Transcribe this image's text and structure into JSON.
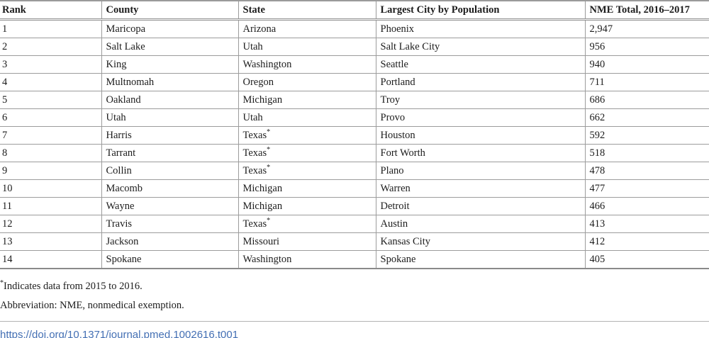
{
  "table": {
    "columns": [
      "Rank",
      "County",
      "State",
      "Largest City by Population",
      "NME Total, 2016–2017"
    ],
    "rows": [
      {
        "rank": "1",
        "county": "Maricopa",
        "state": "Arizona",
        "state_note": "",
        "city": "Phoenix",
        "nme": "2,947"
      },
      {
        "rank": "2",
        "county": "Salt Lake",
        "state": "Utah",
        "state_note": "",
        "city": "Salt Lake City",
        "nme": "956"
      },
      {
        "rank": "3",
        "county": "King",
        "state": "Washington",
        "state_note": "",
        "city": "Seattle",
        "nme": "940"
      },
      {
        "rank": "4",
        "county": "Multnomah",
        "state": "Oregon",
        "state_note": "",
        "city": "Portland",
        "nme": "711"
      },
      {
        "rank": "5",
        "county": "Oakland",
        "state": "Michigan",
        "state_note": "",
        "city": "Troy",
        "nme": "686"
      },
      {
        "rank": "6",
        "county": "Utah",
        "state": "Utah",
        "state_note": "",
        "city": "Provo",
        "nme": "662"
      },
      {
        "rank": "7",
        "county": "Harris",
        "state": "Texas",
        "state_note": "*",
        "city": "Houston",
        "nme": "592"
      },
      {
        "rank": "8",
        "county": "Tarrant",
        "state": "Texas",
        "state_note": "*",
        "city": "Fort Worth",
        "nme": "518"
      },
      {
        "rank": "9",
        "county": "Collin",
        "state": "Texas",
        "state_note": "*",
        "city": "Plano",
        "nme": "478"
      },
      {
        "rank": "10",
        "county": "Macomb",
        "state": "Michigan",
        "state_note": "",
        "city": "Warren",
        "nme": "477"
      },
      {
        "rank": "11",
        "county": "Wayne",
        "state": "Michigan",
        "state_note": "",
        "city": "Detroit",
        "nme": "466"
      },
      {
        "rank": "12",
        "county": "Travis",
        "state": "Texas",
        "state_note": "*",
        "city": "Austin",
        "nme": "413"
      },
      {
        "rank": "13",
        "county": "Jackson",
        "state": "Missouri",
        "state_note": "",
        "city": "Kansas City",
        "nme": "412"
      },
      {
        "rank": "14",
        "county": "Spokane",
        "state": "Washington",
        "state_note": "",
        "city": "Spokane",
        "nme": "405"
      }
    ]
  },
  "footnotes": [
    {
      "symbol": "*",
      "text": "Indicates data from 2015 to 2016."
    },
    {
      "symbol": "",
      "text": "Abbreviation: NME, nonmedical exemption."
    }
  ],
  "doi": {
    "text": "https://doi.org/10.1371/journal.pmed.1002616.t001"
  },
  "colors": {
    "link_blue": "#4470b4",
    "rule_gray": "#9c9c9c",
    "text": "#1c1c1c"
  }
}
